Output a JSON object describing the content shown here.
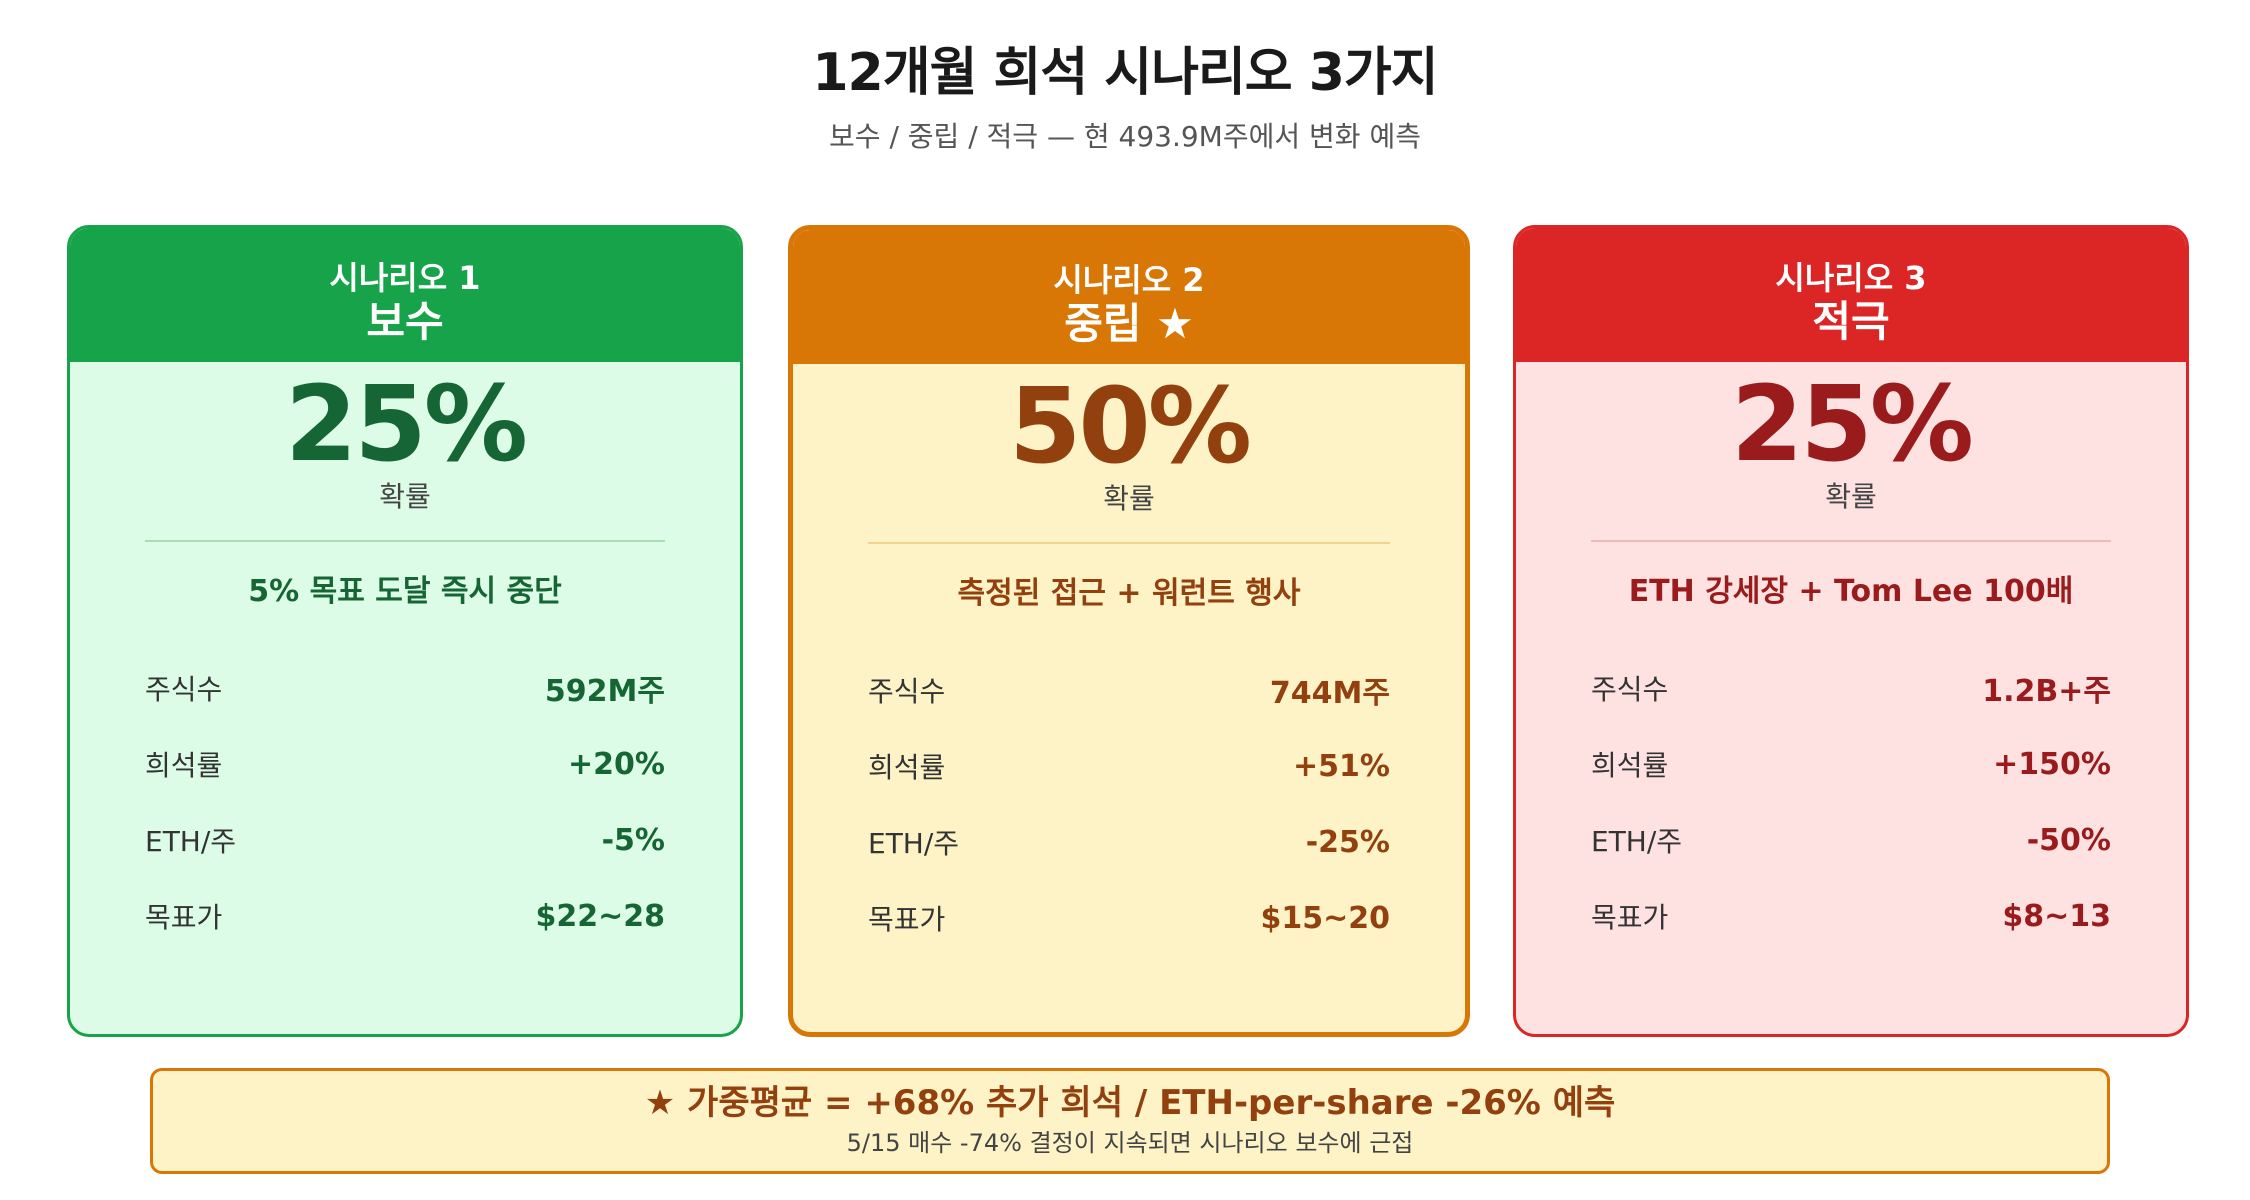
{
  "page": {
    "title": "12개월 희석 시나리오 3가지",
    "subtitle": "보수 / 중립 / 적극 — 현 493.9M주에서 변화 예측"
  },
  "cards": [
    {
      "kicker": "시나리오 1",
      "name": "보수",
      "probability": "25%",
      "probability_label": "확률",
      "description": "5% 목표 도달 즉시 중단",
      "metrics": [
        {
          "label": "주식수",
          "value": "592M주"
        },
        {
          "label": "희석률",
          "value": "+20%"
        },
        {
          "label": "ETH/주",
          "value": "-5%"
        },
        {
          "label": "목표가",
          "value": "$22~28"
        }
      ],
      "colors": {
        "accent": "#16a34a",
        "background": "#dcfce7",
        "text": "#166534"
      }
    },
    {
      "kicker": "시나리오 2",
      "name": "중립 ★",
      "probability": "50%",
      "probability_label": "확률",
      "description": "측정된 접근 + 워런트 행사",
      "metrics": [
        {
          "label": "주식수",
          "value": "744M주"
        },
        {
          "label": "희석률",
          "value": "+51%"
        },
        {
          "label": "ETH/주",
          "value": "-25%"
        },
        {
          "label": "목표가",
          "value": "$15~20"
        }
      ],
      "colors": {
        "accent": "#d97706",
        "background": "#fef3c7",
        "text": "#92400e"
      }
    },
    {
      "kicker": "시나리오 3",
      "name": "적극",
      "probability": "25%",
      "probability_label": "확률",
      "description": "ETH 강세장 + Tom Lee 100배",
      "metrics": [
        {
          "label": "주식수",
          "value": "1.2B+주"
        },
        {
          "label": "희석률",
          "value": "+150%"
        },
        {
          "label": "ETH/주",
          "value": "-50%"
        },
        {
          "label": "목표가",
          "value": "$8~13"
        }
      ],
      "colors": {
        "accent": "#dc2626",
        "background": "#fee2e2",
        "text": "#991b1b"
      }
    }
  ],
  "summary": {
    "main": "★ 가중평균 = +68% 추가 희석 / ETH-per-share -26% 예측",
    "note": "5/15 매수 -74% 결정이 지속되면 시나리오 보수에 근접"
  }
}
